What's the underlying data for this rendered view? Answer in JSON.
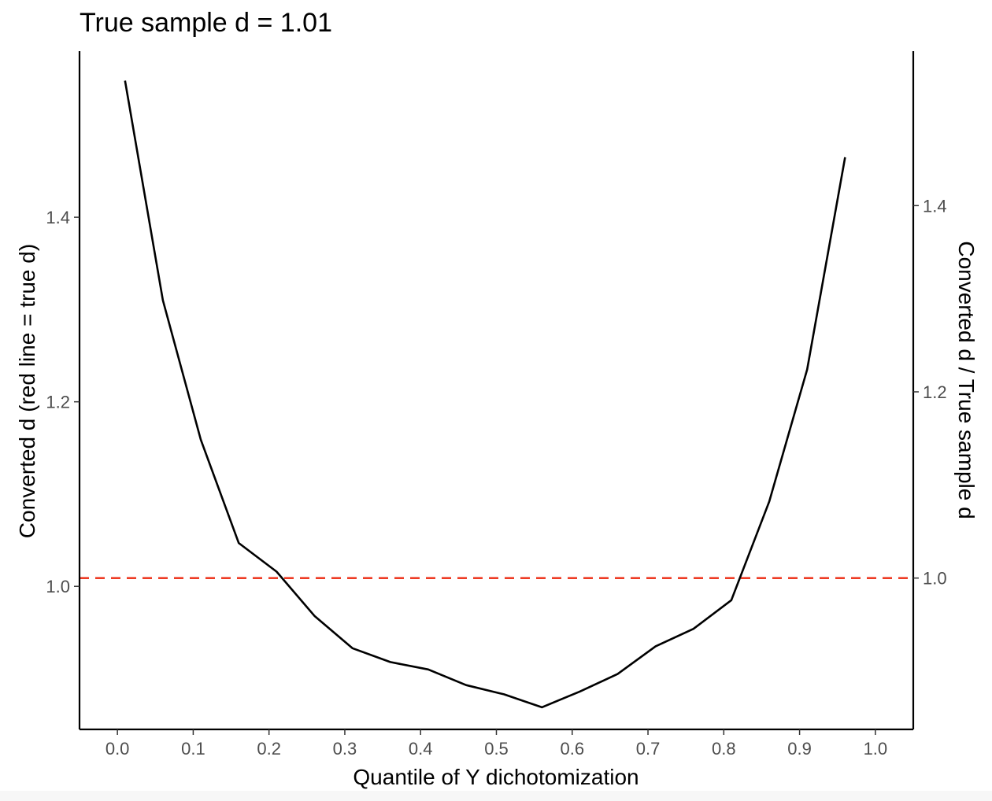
{
  "chart_data": {
    "type": "line",
    "title": "True sample d =  1.01",
    "xlabel": "Quantile of Y dichotomization",
    "ylabel": "Converted d (red line = true d)",
    "y2label": "Converted d / True sample d",
    "xlim": [
      -0.05,
      1.05
    ],
    "ylim": [
      0.845,
      1.58
    ],
    "xticks": [
      0.0,
      0.1,
      0.2,
      0.3,
      0.4,
      0.5,
      0.6,
      0.7,
      0.8,
      0.9,
      1.0
    ],
    "xtick_labels": [
      "0.0",
      "0.1",
      "0.2",
      "0.3",
      "0.4",
      "0.5",
      "0.6",
      "0.7",
      "0.8",
      "0.9",
      "1.0"
    ],
    "yticks": [
      1.0,
      1.2,
      1.4
    ],
    "ytick_labels": [
      "1.0",
      "1.2",
      "1.4"
    ],
    "y2_scale": 1.009,
    "y2ticks": [
      1.0,
      1.2,
      1.4
    ],
    "y2tick_labels": [
      "1.0",
      "1.2",
      "1.4"
    ],
    "grid": false,
    "series": [
      {
        "color": "#000000",
        "x": [
          0.01,
          0.06,
          0.11,
          0.16,
          0.21,
          0.26,
          0.31,
          0.36,
          0.41,
          0.46,
          0.51,
          0.56,
          0.61,
          0.66,
          0.71,
          0.76,
          0.81,
          0.86,
          0.91,
          0.96
        ],
        "y": [
          1.548,
          1.31,
          1.159,
          1.047,
          1.016,
          0.968,
          0.933,
          0.918,
          0.91,
          0.893,
          0.883,
          0.869,
          0.886,
          0.905,
          0.935,
          0.954,
          0.985,
          1.092,
          1.235,
          1.465
        ]
      }
    ],
    "reference_line": {
      "y": 1.009,
      "color": "#ee3b24",
      "style": "dashed"
    }
  }
}
